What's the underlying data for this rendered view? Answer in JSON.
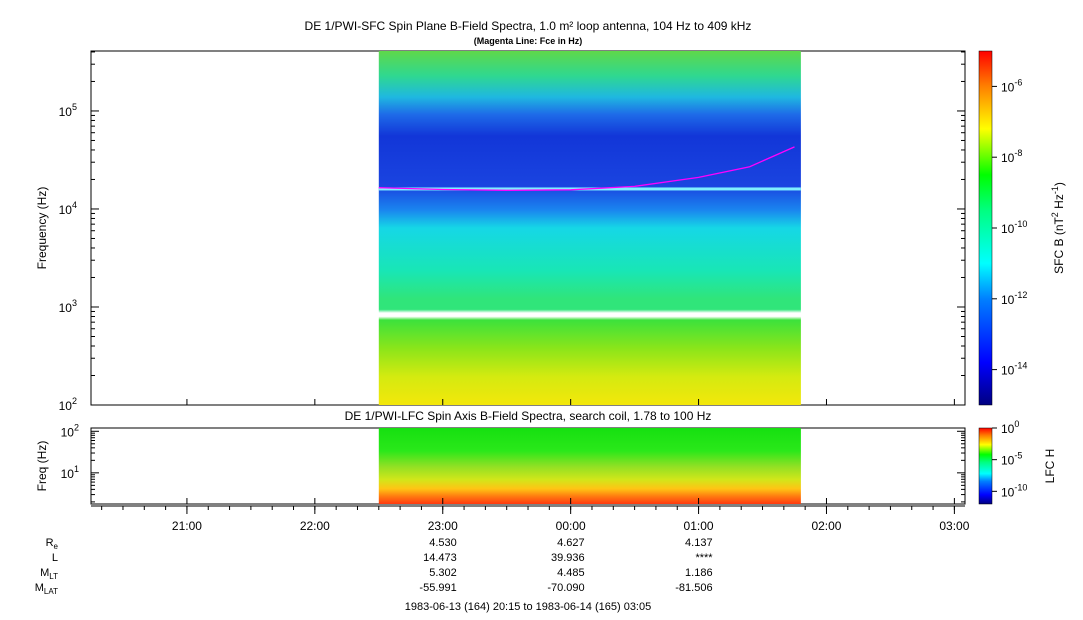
{
  "chart_data": [
    {
      "type": "heatmap",
      "title": "DE 1/PWI-SFC  Spin Plane B-Field Spectra, 1.0 m² loop antenna, 104 Hz to 409 kHz",
      "subtitle": "(Magenta Line: Fce in Hz)",
      "ylabel": "Frequency (Hz)",
      "yscale": "log",
      "ylim": [
        100,
        409000
      ],
      "y_ticks": [
        {
          "value": 100,
          "label": "10",
          "exp": "2"
        },
        {
          "value": 1000,
          "label": "10",
          "exp": "3"
        },
        {
          "value": 10000,
          "label": "10",
          "exp": "4"
        },
        {
          "value": 100000,
          "label": "10",
          "exp": "5"
        }
      ],
      "data_coverage_hours": [
        22.5,
        25.8
      ],
      "fce_line": {
        "color": "#ff00ff",
        "points": [
          [
            22.5,
            16500
          ],
          [
            23.0,
            15800
          ],
          [
            23.5,
            15500
          ],
          [
            24.0,
            15700
          ],
          [
            24.5,
            17000
          ],
          [
            25.0,
            21000
          ],
          [
            25.4,
            27000
          ],
          [
            25.75,
            43000
          ]
        ]
      },
      "colorbar": {
        "label": "SFC B (nT",
        "label_sup": "2",
        "label_mid": " Hz",
        "label_sup2": "-1",
        "label_end": ")",
        "scale": "log",
        "range": [
          1e-15,
          1e-05
        ],
        "ticks": [
          {
            "value": 1e-14,
            "label": "10",
            "exp": "-14"
          },
          {
            "value": 1e-12,
            "label": "10",
            "exp": "-12"
          },
          {
            "value": 1e-10,
            "label": "10",
            "exp": "-10"
          },
          {
            "value": 1e-08,
            "label": "10",
            "exp": "-8"
          },
          {
            "value": 1e-06,
            "label": "10",
            "exp": "-6"
          }
        ]
      }
    },
    {
      "type": "heatmap",
      "title": "DE 1/PWI-LFC  Spin Axis B-Field Spectra, search coil, 1.78 to 100 Hz",
      "ylabel": "Freq (Hz)",
      "yscale": "log",
      "ylim": [
        1.78,
        120
      ],
      "y_ticks": [
        {
          "value": 10,
          "label": "10",
          "exp": "1"
        },
        {
          "value": 100,
          "label": "10",
          "exp": "2"
        }
      ],
      "data_coverage_hours": [
        22.5,
        25.8
      ],
      "colorbar": {
        "label": "LFC H",
        "scale": "log",
        "range": [
          1e-12,
          1
        ],
        "ticks": [
          {
            "value": 1,
            "label": "10",
            "exp": "0"
          },
          {
            "value": 1e-05,
            "label": "10",
            "exp": "-5"
          },
          {
            "value": 1e-10,
            "label": "10",
            "exp": "-10"
          }
        ]
      }
    }
  ],
  "time_axis": {
    "range_hours": [
      20.25,
      27.083
    ],
    "ticks": [
      {
        "hour": 21,
        "label": "21:00"
      },
      {
        "hour": 22,
        "label": "22:00"
      },
      {
        "hour": 23,
        "label": "23:00"
      },
      {
        "hour": 24,
        "label": "00:00"
      },
      {
        "hour": 25,
        "label": "01:00"
      },
      {
        "hour": 26,
        "label": "02:00"
      },
      {
        "hour": 27,
        "label": "03:00"
      }
    ]
  },
  "ephemeris": {
    "rows": [
      {
        "label": "R",
        "sub": "e",
        "values": [
          "4.530",
          "4.627",
          "4.137"
        ]
      },
      {
        "label": "L",
        "sub": "",
        "values": [
          "14.473",
          "39.936",
          "****"
        ]
      },
      {
        "label": "M",
        "sub": "LT",
        "values": [
          "5.302",
          "4.485",
          "1.186"
        ]
      },
      {
        "label": "M",
        "sub": "LAT",
        "values": [
          "-55.991",
          "-70.090",
          "-81.506"
        ]
      }
    ],
    "value_hours": [
      23,
      24,
      25
    ]
  },
  "footer": "1983-06-13 (164) 20:15 to 1983-06-14 (165) 03:05"
}
